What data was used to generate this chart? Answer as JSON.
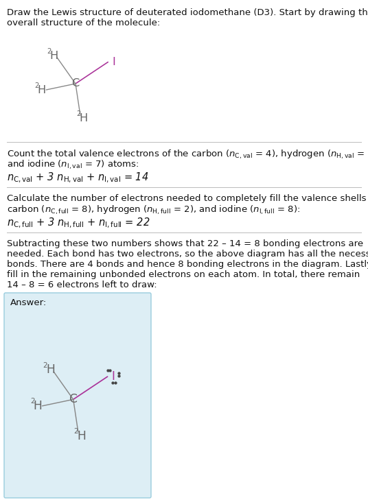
{
  "bg_color": "#ffffff",
  "answer_box_color": "#ddeef5",
  "bond_color_CH": "#888888",
  "bond_color_CI": "#aa3399",
  "atom_color_C": "#666666",
  "atom_color_H": "#666666",
  "atom_color_I": "#aa3399",
  "lone_pair_color": "#444444",
  "text_color": "#111111",
  "divider_color": "#bbbbbb",
  "answer_border_color": "#99ccdd",
  "title_line1": "Draw the Lewis structure of deuterated iodomethane (D3). Start by drawing the",
  "title_line2": "overall structure of the molecule:",
  "s1_line1": "Count the total valence electrons of the carbon (",
  "s1_line2": "and iodine (",
  "s2_line1": "Calculate the number of electrons needed to completely fill the valence shells for",
  "s2_line2": "carbon (",
  "s3_lines": [
    "Subtracting these two numbers shows that 22 – 14 = 8 bonding electrons are",
    "needed. Each bond has two electrons, so the above diagram has all the necessary",
    "bonds. There are 4 bonds and hence 8 bonding electrons in the diagram. Lastly,",
    "fill in the remaining unbonded electrons on each atom. In total, there remain",
    "14 – 8 = 6 electrons left to draw:"
  ],
  "answer_label": "Answer:"
}
